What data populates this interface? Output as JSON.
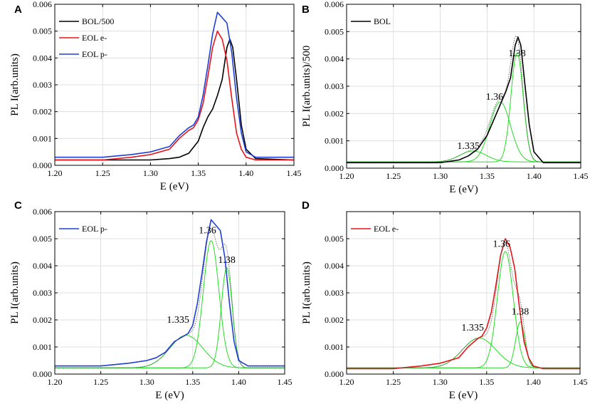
{
  "figure": {
    "type": "multi-panel photoluminescence spectra"
  },
  "chart_data": [
    {
      "panel": "A",
      "type": "line",
      "xlabel": "E (eV)",
      "ylabel": "PL I(arb.units)",
      "xlim": [
        1.2,
        1.45
      ],
      "ylim": [
        0,
        0.006
      ],
      "xticks": [
        "1.20",
        "1.25",
        "1.30",
        "1.35",
        "1.40",
        "1.45"
      ],
      "yticks": [
        "0.000",
        "0.001",
        "0.002",
        "0.003",
        "0.004",
        "0.005",
        "0.006"
      ],
      "grid": true,
      "legend": "top-left",
      "series": [
        {
          "name": "BOL/500",
          "color": "#000000",
          "x": [
            1.2,
            1.25,
            1.28,
            1.3,
            1.32,
            1.33,
            1.34,
            1.35,
            1.355,
            1.36,
            1.365,
            1.37,
            1.375,
            1.38,
            1.383,
            1.386,
            1.39,
            1.395,
            1.4,
            1.41,
            1.45
          ],
          "y": [
            0.0002,
            0.0002,
            0.0002,
            0.0002,
            0.00025,
            0.0003,
            0.00045,
            0.0009,
            0.0014,
            0.0018,
            0.0021,
            0.0026,
            0.0032,
            0.0044,
            0.0047,
            0.0044,
            0.0032,
            0.0015,
            0.0006,
            0.00025,
            0.0002
          ]
        },
        {
          "name": "EOL e-",
          "color": "#e8141b",
          "x": [
            1.2,
            1.25,
            1.28,
            1.3,
            1.31,
            1.32,
            1.33,
            1.34,
            1.345,
            1.35,
            1.355,
            1.36,
            1.365,
            1.37,
            1.375,
            1.38,
            1.385,
            1.39,
            1.395,
            1.4,
            1.41,
            1.45
          ],
          "y": [
            0.0002,
            0.0002,
            0.0003,
            0.0004,
            0.0005,
            0.0006,
            0.001,
            0.0013,
            0.0014,
            0.0017,
            0.0023,
            0.0033,
            0.0044,
            0.005,
            0.0047,
            0.0039,
            0.0025,
            0.0012,
            0.0006,
            0.0003,
            0.0002,
            0.0002
          ]
        },
        {
          "name": "EOL p-",
          "color": "#1f3fd4",
          "x": [
            1.2,
            1.25,
            1.28,
            1.3,
            1.31,
            1.32,
            1.33,
            1.34,
            1.345,
            1.35,
            1.355,
            1.36,
            1.365,
            1.37,
            1.375,
            1.38,
            1.385,
            1.39,
            1.395,
            1.4,
            1.41,
            1.45
          ],
          "y": [
            0.0003,
            0.0003,
            0.0004,
            0.0005,
            0.0006,
            0.0007,
            0.0011,
            0.0014,
            0.0015,
            0.0018,
            0.0026,
            0.0037,
            0.0049,
            0.0057,
            0.0055,
            0.0053,
            0.0042,
            0.0025,
            0.0012,
            0.0005,
            0.0003,
            0.0003
          ]
        }
      ]
    },
    {
      "panel": "B",
      "type": "line",
      "xlabel": "E (eV)",
      "ylabel": "PL I(arb.units)/500",
      "xlim": [
        1.2,
        1.45
      ],
      "ylim": [
        0,
        0.006
      ],
      "xticks": [
        "1.20",
        "1.25",
        "1.30",
        "1.35",
        "1.40",
        "1.45"
      ],
      "yticks": [
        "0.000",
        "0.001",
        "0.002",
        "0.003",
        "0.004",
        "0.005",
        "0.006"
      ],
      "grid": true,
      "legend": "top-left",
      "legend_entries": [
        "BOL"
      ],
      "series": [
        {
          "name": "BOL",
          "color": "#000000",
          "x": [
            1.2,
            1.25,
            1.28,
            1.3,
            1.32,
            1.33,
            1.34,
            1.35,
            1.355,
            1.36,
            1.365,
            1.37,
            1.375,
            1.38,
            1.383,
            1.386,
            1.39,
            1.395,
            1.4,
            1.41,
            1.45
          ],
          "y": [
            0.0002,
            0.0002,
            0.0002,
            0.0002,
            0.0003,
            0.00045,
            0.0007,
            0.0012,
            0.0016,
            0.002,
            0.0024,
            0.0028,
            0.0033,
            0.0045,
            0.0048,
            0.0045,
            0.0032,
            0.0016,
            0.0006,
            0.0002,
            0.0002
          ]
        },
        {
          "name": "peak 1.335",
          "color": "#22dd22",
          "fit": true,
          "center": 1.335,
          "amp": 0.0004,
          "sigma": 0.014
        },
        {
          "name": "peak 1.36",
          "color": "#22dd22",
          "fit": true,
          "center": 1.364,
          "amp": 0.0022,
          "sigma": 0.011
        },
        {
          "name": "peak 1.38",
          "color": "#22dd22",
          "fit": true,
          "center": 1.382,
          "amp": 0.004,
          "sigma": 0.0065
        }
      ],
      "annotations": [
        {
          "text": "1.38",
          "x": 1.382,
          "y": 0.0041
        },
        {
          "text": "1.36",
          "x": 1.358,
          "y": 0.0025
        },
        {
          "text": "1.335",
          "x": 1.33,
          "y": 0.0007
        }
      ]
    },
    {
      "panel": "C",
      "type": "line",
      "xlabel": "E (eV)",
      "ylabel": "PL I(arb.units)",
      "xlim": [
        1.2,
        1.45
      ],
      "ylim": [
        0,
        0.006
      ],
      "xticks": [
        "1.20",
        "1.25",
        "1.30",
        "1.35",
        "1.40",
        "1.45"
      ],
      "yticks": [
        "0.000",
        "0.001",
        "0.002",
        "0.003",
        "0.004",
        "0.005",
        "0.006"
      ],
      "grid": true,
      "legend": "top-left",
      "legend_entries": [
        "EOL p-"
      ],
      "series": [
        {
          "name": "EOL p-",
          "color": "#1f3fd4",
          "x": [
            1.2,
            1.25,
            1.28,
            1.3,
            1.31,
            1.32,
            1.33,
            1.34,
            1.345,
            1.35,
            1.355,
            1.36,
            1.365,
            1.37,
            1.375,
            1.38,
            1.385,
            1.39,
            1.395,
            1.4,
            1.41,
            1.45
          ],
          "y": [
            0.0003,
            0.0003,
            0.0004,
            0.0005,
            0.0006,
            0.0008,
            0.0012,
            0.0014,
            0.0015,
            0.0018,
            0.0026,
            0.0037,
            0.0049,
            0.0057,
            0.0055,
            0.0053,
            0.0043,
            0.0026,
            0.0012,
            0.0005,
            0.0003,
            0.0003
          ]
        },
        {
          "name": "peak 1.335",
          "color": "#22dd22",
          "fit": true,
          "center": 1.343,
          "amp": 0.0012,
          "sigma": 0.018
        },
        {
          "name": "peak 1.36",
          "color": "#22dd22",
          "fit": true,
          "center": 1.37,
          "amp": 0.0047,
          "sigma": 0.0085
        },
        {
          "name": "peak 1.38",
          "color": "#22dd22",
          "fit": true,
          "center": 1.387,
          "amp": 0.0037,
          "sigma": 0.006
        }
      ],
      "annotations": [
        {
          "text": "1.36",
          "x": 1.366,
          "y": 0.0052
        },
        {
          "text": "1.38",
          "x": 1.387,
          "y": 0.0041
        },
        {
          "text": "1.335",
          "x": 1.334,
          "y": 0.0019
        }
      ]
    },
    {
      "panel": "D",
      "type": "line",
      "xlabel": "E (eV)",
      "ylabel": "PL I(arb.units)",
      "xlim": [
        1.2,
        1.45
      ],
      "ylim": [
        0,
        0.006
      ],
      "xticks": [
        "1.20",
        "1.25",
        "1.30",
        "1.35",
        "1.40",
        "1.45"
      ],
      "yticks": [
        "0.000",
        "0.001",
        "0.002",
        "0.003",
        "0.004",
        "0.005"
      ],
      "grid": true,
      "legend": "top-left",
      "legend_entries": [
        "EOL e-"
      ],
      "series": [
        {
          "name": "EOL e-",
          "color": "#e8141b",
          "x": [
            1.2,
            1.25,
            1.28,
            1.3,
            1.31,
            1.32,
            1.33,
            1.34,
            1.345,
            1.35,
            1.355,
            1.36,
            1.365,
            1.37,
            1.375,
            1.38,
            1.385,
            1.39,
            1.395,
            1.4,
            1.41,
            1.45
          ],
          "y": [
            0.0002,
            0.0002,
            0.0003,
            0.0004,
            0.0005,
            0.0006,
            0.001,
            0.0013,
            0.0014,
            0.0017,
            0.0023,
            0.0033,
            0.0044,
            0.005,
            0.0047,
            0.0039,
            0.0025,
            0.0012,
            0.0006,
            0.0003,
            0.0002,
            0.0002
          ]
        },
        {
          "name": "peak 1.335",
          "color": "#22dd22",
          "fit": true,
          "center": 1.342,
          "amp": 0.0011,
          "sigma": 0.018
        },
        {
          "name": "peak 1.36",
          "color": "#22dd22",
          "fit": true,
          "center": 1.37,
          "amp": 0.0043,
          "sigma": 0.0085
        },
        {
          "name": "peak 1.38",
          "color": "#22dd22",
          "fit": true,
          "center": 1.386,
          "amp": 0.0017,
          "sigma": 0.005
        }
      ],
      "annotations": [
        {
          "text": "1.36",
          "x": 1.366,
          "y": 0.0047
        },
        {
          "text": "1.38",
          "x": 1.386,
          "y": 0.0022
        },
        {
          "text": "1.335",
          "x": 1.335,
          "y": 0.0016
        }
      ]
    }
  ]
}
